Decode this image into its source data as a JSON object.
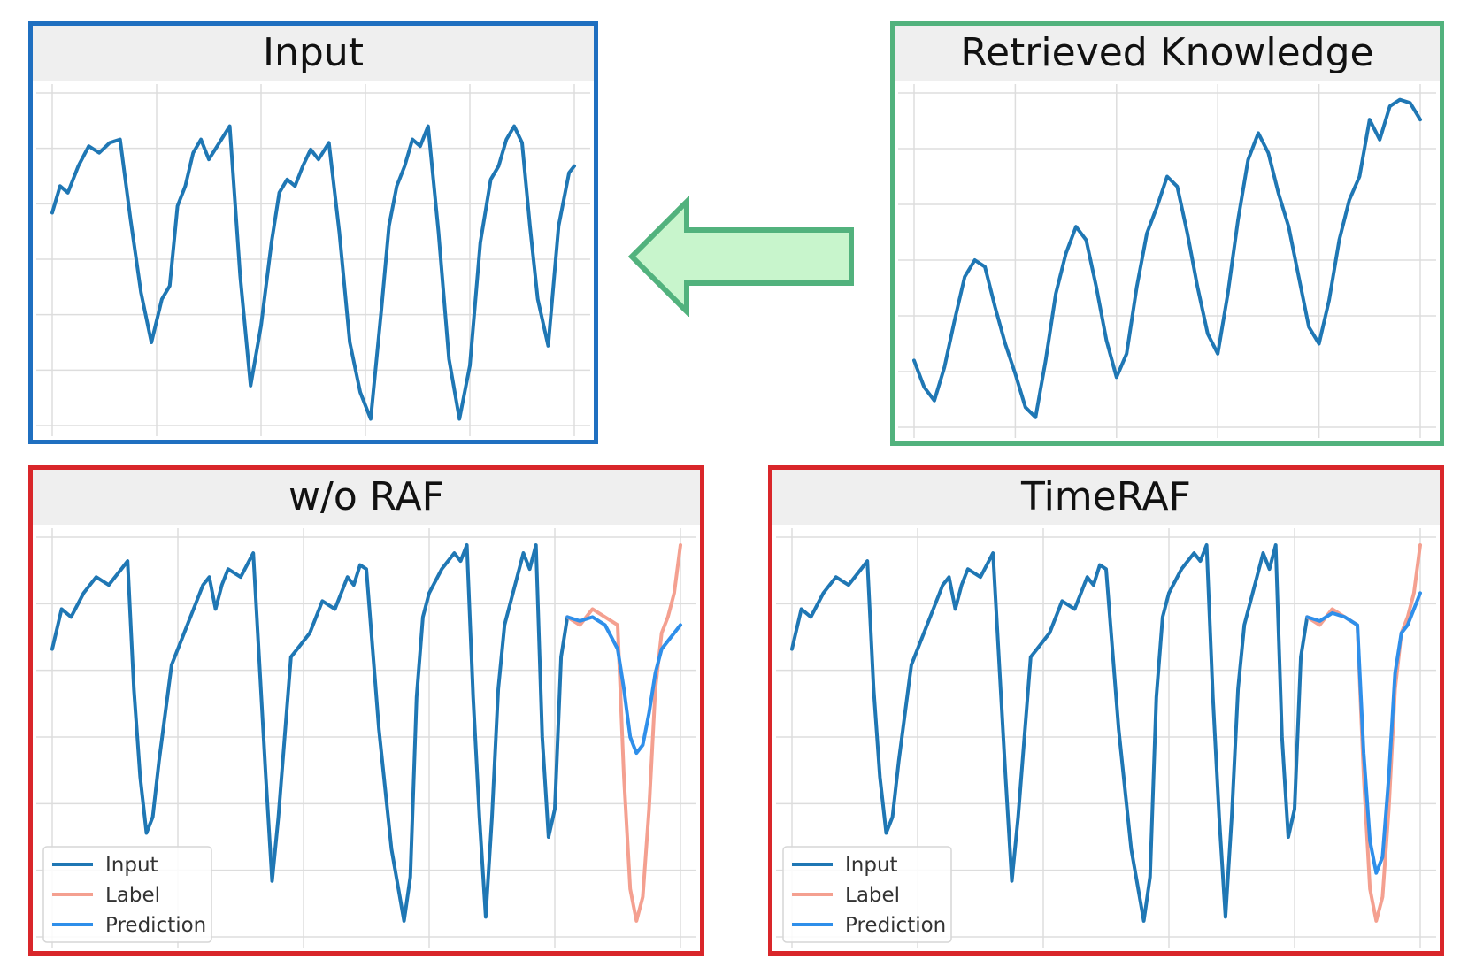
{
  "colors": {
    "input": "#1f77b4",
    "label": "#f4a090",
    "prediction": "#2f8fea",
    "grid": "#dddddd",
    "arrow_fill": "#c8f5cc",
    "arrow_stroke": "#52b27d"
  },
  "chart_data": [
    {
      "id": "input",
      "type": "line",
      "title": "Input",
      "grid": true,
      "xlim": [
        0,
        100
      ],
      "ylim": [
        0,
        1
      ],
      "series": [
        {
          "role": "input",
          "x": [
            0,
            1.5,
            3,
            5,
            7,
            9,
            11,
            13,
            15,
            17,
            19,
            21,
            22.5,
            24,
            25.5,
            27,
            28.5,
            30,
            32,
            34,
            36,
            38,
            40,
            42,
            43.5,
            45,
            46.5,
            48,
            49.5,
            51,
            53,
            55,
            57,
            59,
            61,
            63,
            64.5,
            66,
            67.5,
            69,
            70.5,
            72,
            74,
            76,
            78,
            80,
            82,
            84,
            85.5,
            87,
            88.5,
            90,
            91.5,
            93,
            95,
            97,
            99,
            100
          ],
          "y": [
            0.64,
            0.72,
            0.7,
            0.78,
            0.84,
            0.82,
            0.85,
            0.86,
            0.62,
            0.4,
            0.25,
            0.38,
            0.42,
            0.66,
            0.72,
            0.82,
            0.86,
            0.8,
            0.85,
            0.9,
            0.45,
            0.12,
            0.3,
            0.55,
            0.7,
            0.74,
            0.72,
            0.78,
            0.83,
            0.8,
            0.85,
            0.58,
            0.25,
            0.1,
            0.02,
            0.34,
            0.6,
            0.72,
            0.78,
            0.86,
            0.84,
            0.9,
            0.58,
            0.2,
            0.02,
            0.18,
            0.55,
            0.74,
            0.78,
            0.86,
            0.9,
            0.85,
            0.6,
            0.38,
            0.24,
            0.6,
            0.76,
            0.78
          ]
        }
      ]
    },
    {
      "id": "retrieved",
      "type": "line",
      "title": "Retrieved Knowledge",
      "grid": true,
      "xlim": [
        0,
        100
      ],
      "ylim": [
        0,
        1
      ],
      "series": [
        {
          "role": "input",
          "x": [
            0,
            2,
            4,
            6,
            8,
            10,
            12,
            14,
            16,
            18,
            20,
            22,
            24,
            26,
            28,
            30,
            32,
            34,
            36,
            38,
            40,
            42,
            44,
            46,
            48,
            50,
            52,
            54,
            56,
            58,
            60,
            62,
            64,
            66,
            68,
            70,
            72,
            74,
            76,
            78,
            80,
            82,
            84,
            86,
            88,
            90,
            92,
            94,
            96,
            98,
            100
          ],
          "y": [
            0.2,
            0.12,
            0.08,
            0.18,
            0.32,
            0.45,
            0.5,
            0.48,
            0.36,
            0.25,
            0.16,
            0.06,
            0.03,
            0.2,
            0.4,
            0.52,
            0.6,
            0.56,
            0.42,
            0.26,
            0.15,
            0.22,
            0.42,
            0.58,
            0.66,
            0.75,
            0.72,
            0.58,
            0.42,
            0.28,
            0.22,
            0.4,
            0.62,
            0.8,
            0.88,
            0.82,
            0.7,
            0.6,
            0.45,
            0.3,
            0.25,
            0.38,
            0.56,
            0.68,
            0.75,
            0.92,
            0.86,
            0.96,
            0.98,
            0.97,
            0.92
          ]
        }
      ]
    },
    {
      "id": "worag",
      "type": "line",
      "title": "w/o RAF",
      "grid": true,
      "xlim": [
        0,
        100
      ],
      "ylim": [
        0,
        1
      ],
      "legend": [
        "Input",
        "Label",
        "Prediction"
      ],
      "legend_position": "lower-left",
      "series": [
        {
          "role": "input",
          "x": [
            0,
            1.5,
            3,
            5,
            7,
            9,
            11,
            12,
            13,
            14,
            15,
            16,
            17,
            19,
            21,
            23,
            24,
            25,
            26,
            27,
            28,
            30,
            32,
            34,
            35,
            36,
            37,
            38,
            39,
            41,
            43,
            45,
            46,
            47,
            48,
            49,
            50,
            52,
            54,
            56,
            57,
            58,
            59,
            60,
            62,
            64,
            65,
            66,
            67,
            68,
            69,
            70,
            71,
            72,
            73,
            74,
            75,
            76,
            77,
            78,
            79,
            80,
            81,
            82
          ],
          "y": [
            0.72,
            0.82,
            0.8,
            0.86,
            0.9,
            0.88,
            0.92,
            0.94,
            0.62,
            0.4,
            0.26,
            0.3,
            0.44,
            0.68,
            0.76,
            0.84,
            0.88,
            0.9,
            0.82,
            0.88,
            0.92,
            0.9,
            0.96,
            0.4,
            0.14,
            0.3,
            0.5,
            0.7,
            0.72,
            0.76,
            0.84,
            0.82,
            0.86,
            0.9,
            0.88,
            0.93,
            0.92,
            0.52,
            0.22,
            0.04,
            0.15,
            0.6,
            0.8,
            0.86,
            0.92,
            0.96,
            0.94,
            0.98,
            0.6,
            0.3,
            0.05,
            0.3,
            0.62,
            0.78,
            0.84,
            0.9,
            0.96,
            0.92,
            0.98,
            0.5,
            0.25,
            0.32,
            0.7,
            0.8
          ]
        },
        {
          "role": "label",
          "x": [
            82,
            84,
            86,
            88,
            90,
            91,
            92,
            93,
            94,
            95,
            96,
            97,
            98,
            99,
            100
          ],
          "y": [
            0.8,
            0.78,
            0.82,
            0.8,
            0.78,
            0.4,
            0.12,
            0.04,
            0.1,
            0.32,
            0.62,
            0.76,
            0.8,
            0.86,
            0.98
          ]
        },
        {
          "role": "prediction",
          "x": [
            82,
            84,
            86,
            88,
            90,
            91,
            92,
            93,
            94,
            95,
            96,
            97,
            98,
            99,
            100
          ],
          "y": [
            0.8,
            0.79,
            0.8,
            0.78,
            0.72,
            0.62,
            0.5,
            0.46,
            0.48,
            0.56,
            0.66,
            0.72,
            0.74,
            0.76,
            0.78
          ]
        }
      ]
    },
    {
      "id": "timeraf",
      "type": "line",
      "title": "TimeRAF",
      "grid": true,
      "xlim": [
        0,
        100
      ],
      "ylim": [
        0,
        1
      ],
      "legend": [
        "Input",
        "Label",
        "Prediction"
      ],
      "legend_position": "lower-left",
      "series": [
        {
          "role": "input",
          "x": [
            0,
            1.5,
            3,
            5,
            7,
            9,
            11,
            12,
            13,
            14,
            15,
            16,
            17,
            19,
            21,
            23,
            24,
            25,
            26,
            27,
            28,
            30,
            32,
            34,
            35,
            36,
            37,
            38,
            39,
            41,
            43,
            45,
            46,
            47,
            48,
            49,
            50,
            52,
            54,
            56,
            57,
            58,
            59,
            60,
            62,
            64,
            65,
            66,
            67,
            68,
            69,
            70,
            71,
            72,
            73,
            74,
            75,
            76,
            77,
            78,
            79,
            80,
            81,
            82
          ],
          "y": [
            0.72,
            0.82,
            0.8,
            0.86,
            0.9,
            0.88,
            0.92,
            0.94,
            0.62,
            0.4,
            0.26,
            0.3,
            0.44,
            0.68,
            0.76,
            0.84,
            0.88,
            0.9,
            0.82,
            0.88,
            0.92,
            0.9,
            0.96,
            0.4,
            0.14,
            0.3,
            0.5,
            0.7,
            0.72,
            0.76,
            0.84,
            0.82,
            0.86,
            0.9,
            0.88,
            0.93,
            0.92,
            0.52,
            0.22,
            0.04,
            0.15,
            0.6,
            0.8,
            0.86,
            0.92,
            0.96,
            0.94,
            0.98,
            0.6,
            0.3,
            0.05,
            0.3,
            0.62,
            0.78,
            0.84,
            0.9,
            0.96,
            0.92,
            0.98,
            0.5,
            0.25,
            0.32,
            0.7,
            0.8
          ]
        },
        {
          "role": "label",
          "x": [
            82,
            84,
            86,
            88,
            90,
            91,
            92,
            93,
            94,
            95,
            96,
            97,
            98,
            99,
            100
          ],
          "y": [
            0.8,
            0.78,
            0.82,
            0.8,
            0.78,
            0.4,
            0.12,
            0.04,
            0.1,
            0.32,
            0.62,
            0.76,
            0.8,
            0.86,
            0.98
          ]
        },
        {
          "role": "prediction",
          "x": [
            82,
            84,
            86,
            88,
            90,
            91,
            92,
            93,
            94,
            95,
            96,
            97,
            98,
            99,
            100
          ],
          "y": [
            0.8,
            0.79,
            0.81,
            0.8,
            0.78,
            0.46,
            0.24,
            0.16,
            0.2,
            0.4,
            0.66,
            0.76,
            0.78,
            0.82,
            0.86
          ]
        }
      ]
    }
  ]
}
